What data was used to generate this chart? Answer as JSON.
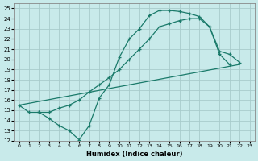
{
  "xlabel": "Humidex (Indice chaleur)",
  "bg_color": "#c8eaea",
  "grid_color": "#a8cccc",
  "line_color": "#1a7a6a",
  "xlim": [
    -0.5,
    23.5
  ],
  "ylim": [
    12,
    25.5
  ],
  "yticks": [
    12,
    13,
    14,
    15,
    16,
    17,
    18,
    19,
    20,
    21,
    22,
    23,
    24,
    25
  ],
  "xticks": [
    0,
    1,
    2,
    3,
    4,
    5,
    6,
    7,
    8,
    9,
    10,
    11,
    12,
    13,
    14,
    15,
    16,
    17,
    18,
    19,
    20,
    21,
    22,
    23
  ],
  "curve1_x": [
    0,
    1,
    2,
    3,
    4,
    5,
    6,
    7,
    8,
    9,
    10,
    11,
    12,
    13,
    14,
    15,
    16,
    17,
    18,
    19,
    20,
    21
  ],
  "curve1_y": [
    15.5,
    14.8,
    14.8,
    14.2,
    13.5,
    13.0,
    12.1,
    13.5,
    16.2,
    17.5,
    20.2,
    22.0,
    23.0,
    24.3,
    24.8,
    24.8,
    24.7,
    24.5,
    24.2,
    23.2,
    20.5,
    19.5
  ],
  "line2_x": [
    0,
    22
  ],
  "line2_y": [
    15.5,
    19.5
  ],
  "curve3_x": [
    2,
    3,
    4,
    5,
    6,
    7,
    8,
    9,
    10,
    11,
    12,
    13,
    14,
    15,
    16,
    17,
    18,
    19,
    20,
    21,
    22
  ],
  "curve3_y": [
    14.8,
    14.8,
    15.2,
    15.5,
    16.0,
    16.8,
    17.5,
    18.2,
    19.0,
    20.0,
    21.0,
    22.0,
    23.2,
    23.5,
    23.8,
    24.0,
    24.0,
    23.2,
    20.8,
    20.5,
    19.7
  ]
}
